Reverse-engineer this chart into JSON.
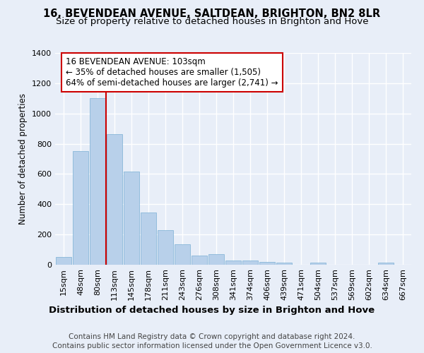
{
  "title1": "16, BEVENDEAN AVENUE, SALTDEAN, BRIGHTON, BN2 8LR",
  "title2": "Size of property relative to detached houses in Brighton and Hove",
  "xlabel": "Distribution of detached houses by size in Brighton and Hove",
  "ylabel": "Number of detached properties",
  "footnote1": "Contains HM Land Registry data © Crown copyright and database right 2024.",
  "footnote2": "Contains public sector information licensed under the Open Government Licence v3.0.",
  "bar_labels": [
    "15sqm",
    "48sqm",
    "80sqm",
    "113sqm",
    "145sqm",
    "178sqm",
    "211sqm",
    "243sqm",
    "276sqm",
    "308sqm",
    "341sqm",
    "374sqm",
    "406sqm",
    "439sqm",
    "471sqm",
    "504sqm",
    "537sqm",
    "569sqm",
    "602sqm",
    "634sqm",
    "667sqm"
  ],
  "bar_values": [
    50,
    750,
    1100,
    865,
    615,
    345,
    228,
    135,
    63,
    70,
    28,
    30,
    20,
    14,
    0,
    13,
    0,
    0,
    0,
    13,
    0
  ],
  "bar_color": "#b8d0ea",
  "bar_edgecolor": "#7aafd4",
  "vline_x": 3.0,
  "vline_color": "#cc0000",
  "annotation_text": "16 BEVENDEAN AVENUE: 103sqm\n← 35% of detached houses are smaller (1,505)\n64% of semi-detached houses are larger (2,741) →",
  "annotation_box_edgecolor": "#cc0000",
  "annotation_box_facecolor": "#ffffff",
  "ylim": [
    0,
    1400
  ],
  "yticks": [
    0,
    200,
    400,
    600,
    800,
    1000,
    1200,
    1400
  ],
  "bg_color": "#e8eef8",
  "plot_bg_color": "#e8eef8",
  "grid_color": "#ffffff",
  "title1_fontsize": 10.5,
  "title2_fontsize": 9.5,
  "xlabel_fontsize": 9.5,
  "ylabel_fontsize": 8.5,
  "tick_fontsize": 8,
  "annotation_fontsize": 8.5,
  "footnote_fontsize": 7.5
}
